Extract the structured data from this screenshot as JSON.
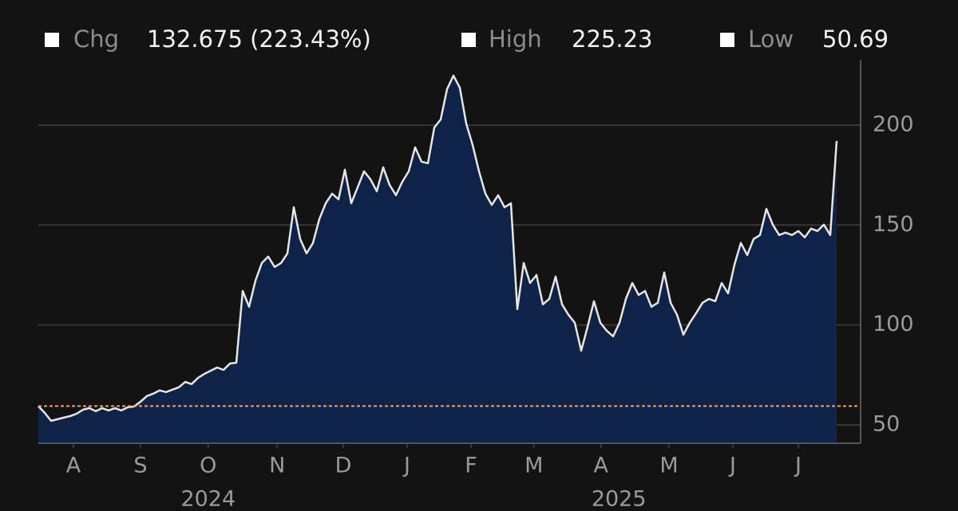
{
  "chart_data": {
    "type": "area",
    "stats": [
      {
        "name": "Chg",
        "value": "132.675 (223.43%)"
      },
      {
        "name": "High",
        "value": "225.23"
      },
      {
        "name": "Low",
        "value": "50.69"
      }
    ],
    "values": [
      59.4,
      56.0,
      52.0,
      52.8,
      53.6,
      54.4,
      55.6,
      57.6,
      58.4,
      56.8,
      58.4,
      57.2,
      58.4,
      57.2,
      58.8,
      59.2,
      61.6,
      64.4,
      65.6,
      67.2,
      66.4,
      67.6,
      68.8,
      71.5,
      70.4,
      73.5,
      75.5,
      77.1,
      78.7,
      77.5,
      80.7,
      81.1,
      117.0,
      109.1,
      122.2,
      131.0,
      134.2,
      129.0,
      131.0,
      135.8,
      158.9,
      143.0,
      135.8,
      141.0,
      153.0,
      160.9,
      165.7,
      162.9,
      177.7,
      160.9,
      168.9,
      176.9,
      172.9,
      166.9,
      178.9,
      170.1,
      164.9,
      171.7,
      176.9,
      188.9,
      181.7,
      180.9,
      198.8,
      202.8,
      218.0,
      224.8,
      218.7,
      200.8,
      190.1,
      176.9,
      165.7,
      160.1,
      164.9,
      158.9,
      160.9,
      107.9,
      131.0,
      121.0,
      125.0,
      110.3,
      113.0,
      124.2,
      110.3,
      105.1,
      101.1,
      87.1,
      99.1,
      111.9,
      101.1,
      97.1,
      94.3,
      101.1,
      113.0,
      121.0,
      115.0,
      117.0,
      109.1,
      111.1,
      126.2,
      111.1,
      105.1,
      95.1,
      101.1,
      105.9,
      111.1,
      113.0,
      111.9,
      121.0,
      115.8,
      130.2,
      141.0,
      135.0,
      143.0,
      145.0,
      158.1,
      150.2,
      145.0,
      146.2,
      145.0,
      147.0,
      143.8,
      148.2,
      147.0,
      150.2,
      145.0,
      192.1
    ],
    "line_color": "#e6e6e6",
    "fill_color": "#0f2247",
    "reference_line": 59.38,
    "reference_color": "#f4a259",
    "xlim": [
      0,
      128.75
    ],
    "xticks": [
      {
        "value": 5.5,
        "label": "A"
      },
      {
        "value": 16,
        "label": "S"
      },
      {
        "value": 26.6,
        "label": "O"
      },
      {
        "value": 37.4,
        "label": "N"
      },
      {
        "value": 47.75,
        "label": "D"
      },
      {
        "value": 57.75,
        "label": "J"
      },
      {
        "value": 67.75,
        "label": "F"
      },
      {
        "value": 77.6,
        "label": "M"
      },
      {
        "value": 88.1,
        "label": "A"
      },
      {
        "value": 98.75,
        "label": "M"
      },
      {
        "value": 108.75,
        "label": "J"
      },
      {
        "value": 119,
        "label": "J"
      }
    ],
    "year_labels": [
      {
        "value": 26.6,
        "label": "2024"
      },
      {
        "value": 90.9,
        "label": "2025"
      }
    ],
    "ylim": [
      40.8,
      232.7
    ],
    "yticks": [
      50,
      100,
      150,
      200
    ],
    "grid": true
  }
}
